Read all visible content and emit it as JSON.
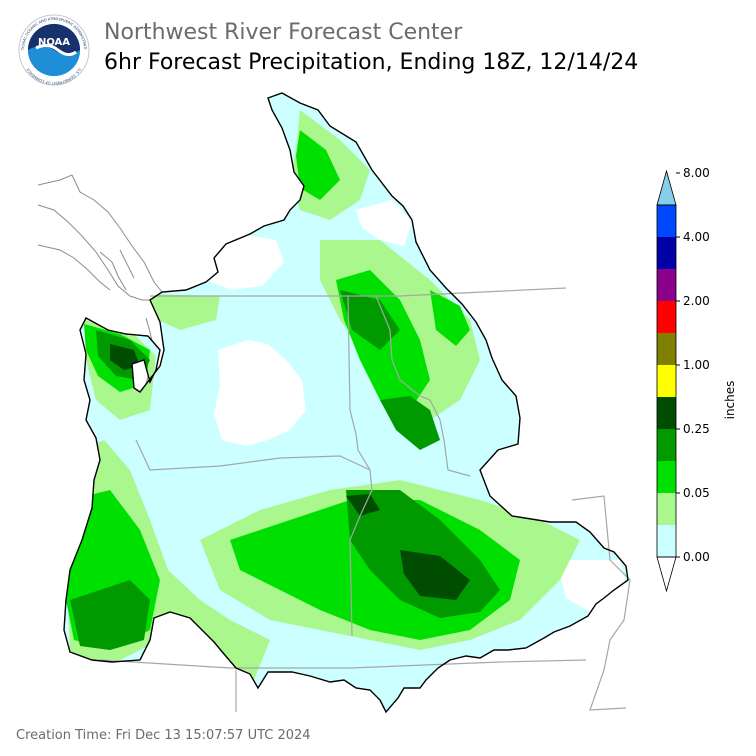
{
  "header": {
    "agency": "Northwest River Forecast Center",
    "product": "6hr Forecast Precipitation, Ending 18Z, 12/14/24",
    "logo": {
      "text": "NOAA",
      "ring_top": "NATIONAL OCEANIC AND ATMOSPHERIC ADMINISTRATION",
      "ring_bottom": "U.S. DEPARTMENT OF COMMERCE"
    }
  },
  "legend": {
    "unit_label": "inches",
    "tick_labels": [
      "0.00",
      "0.05",
      "0.25",
      "1.00",
      "2.00",
      "4.00",
      "8.00"
    ],
    "tick_bins": [
      0,
      2,
      4,
      6,
      8,
      10,
      12
    ],
    "colors": [
      "#ffffff",
      "#ccffff",
      "#aaf78e",
      "#00e000",
      "#009900",
      "#004c00",
      "#ffff00",
      "#7f7f00",
      "#ff0000",
      "#8b008b",
      "#0000a6",
      "#0048ff",
      "#87ceeb"
    ],
    "extend": "both"
  },
  "map_colors": {
    "boundary": "#000000",
    "state_lines": "#a6a6a6",
    "coastline": "#8c8c8c"
  },
  "footer": {
    "creation_time": "Creation Time: Fri Dec 13 15:07:57 UTC 2024"
  }
}
